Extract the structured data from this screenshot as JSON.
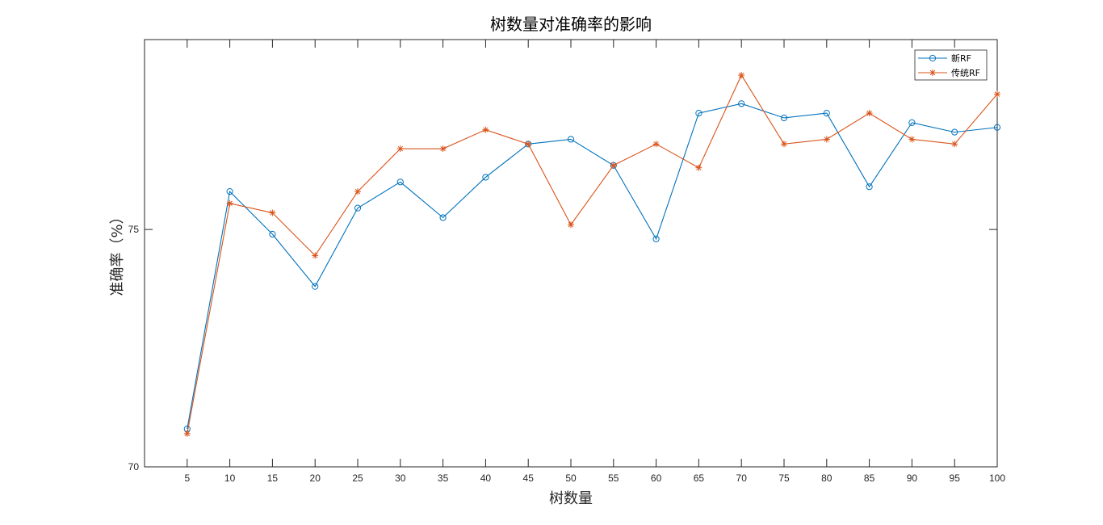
{
  "chart_data": {
    "type": "line",
    "title": "树数量对准确率的影响",
    "xlabel": "树数量",
    "ylabel": "准确率（%）",
    "x": [
      5,
      10,
      15,
      20,
      25,
      30,
      35,
      40,
      45,
      50,
      55,
      60,
      65,
      70,
      75,
      80,
      85,
      90,
      95,
      100
    ],
    "xlim": [
      0,
      100
    ],
    "ylim": [
      70,
      79
    ],
    "yticks": [
      70,
      75
    ],
    "grid": false,
    "legend_position": "top-right",
    "series": [
      {
        "name": "新RF",
        "color": "#0072BD",
        "marker": "circle",
        "values": [
          70.8,
          75.8,
          74.9,
          73.8,
          75.45,
          76.0,
          75.25,
          76.1,
          76.8,
          76.9,
          76.35,
          74.8,
          77.45,
          77.65,
          77.35,
          77.45,
          75.9,
          77.25,
          77.05,
          77.15
        ]
      },
      {
        "name": "传统RF",
        "color": "#D95319",
        "marker": "asterisk",
        "values": [
          70.7,
          75.55,
          75.35,
          74.45,
          75.8,
          76.7,
          76.7,
          77.1,
          76.8,
          75.1,
          76.35,
          76.8,
          76.3,
          78.25,
          76.8,
          76.9,
          77.45,
          76.9,
          76.8,
          77.85
        ]
      }
    ]
  }
}
